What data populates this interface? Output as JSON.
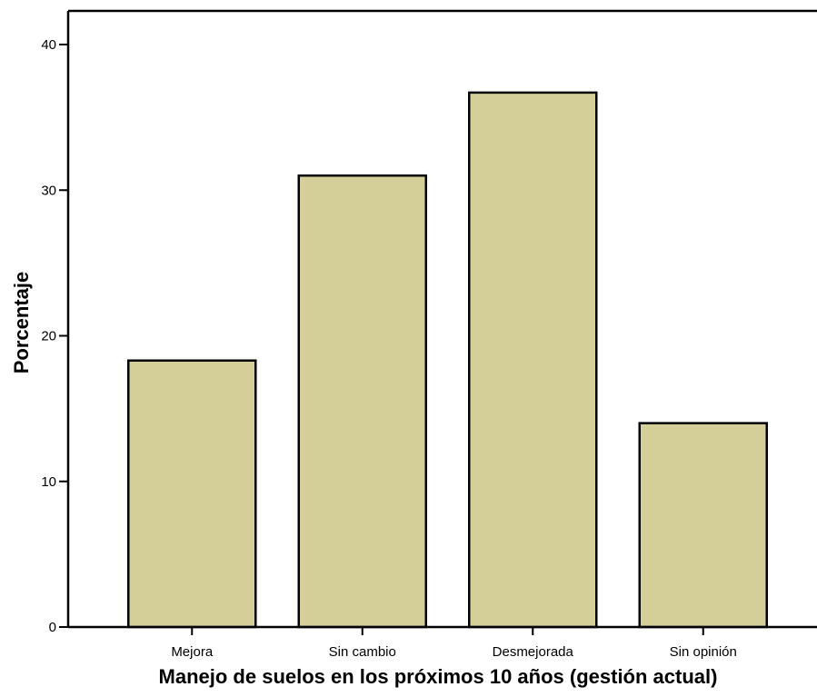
{
  "chart_data": {
    "type": "bar",
    "title": "",
    "xlabel": "Manejo de suelos en los próximos 10 años (gestión actual)",
    "ylabel": "Porcentaje",
    "categories": [
      "Mejora",
      "Sin cambio",
      "Desmejorada",
      "Sin opinión"
    ],
    "values": [
      18.3,
      31.0,
      36.7,
      14.0
    ],
    "ylim": [
      0,
      42
    ],
    "yticks": [
      "0",
      "10",
      "20",
      "30",
      "40"
    ],
    "grid": false,
    "bar_color": "#d4cf98",
    "bar_edge_color": "#000000"
  }
}
